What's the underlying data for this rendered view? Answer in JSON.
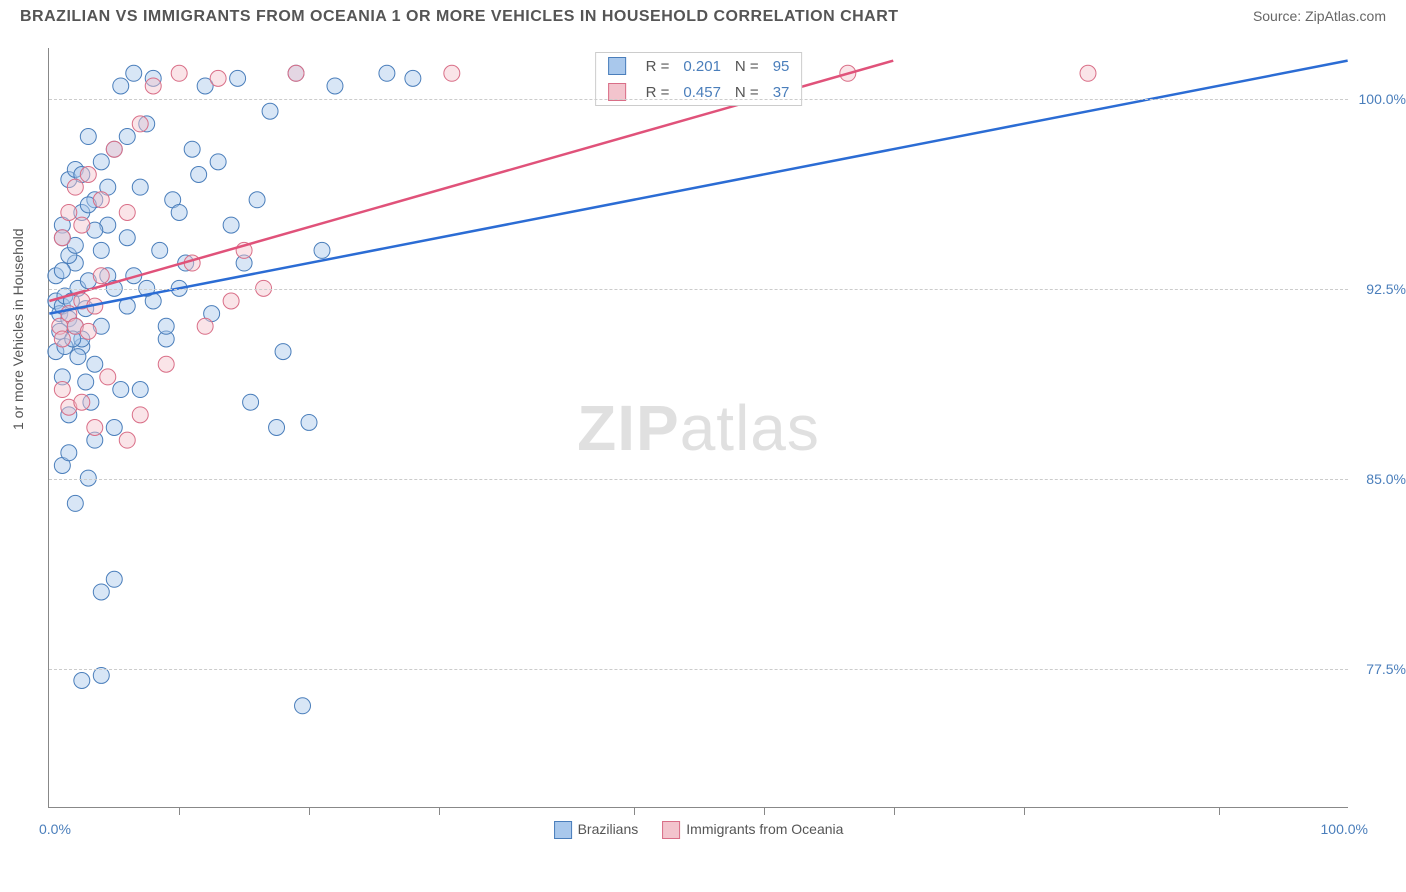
{
  "title": "BRAZILIAN VS IMMIGRANTS FROM OCEANIA 1 OR MORE VEHICLES IN HOUSEHOLD CORRELATION CHART",
  "source": "Source: ZipAtlas.com",
  "watermark_a": "ZIP",
  "watermark_b": "atlas",
  "chart": {
    "type": "scatter",
    "ylabel": "1 or more Vehicles in Household",
    "xlim": [
      0,
      100
    ],
    "ylim": [
      72,
      102
    ],
    "xticks_pos": [
      10,
      20,
      30,
      45,
      55,
      65,
      75,
      90
    ],
    "xaxis_min_label": "0.0%",
    "xaxis_max_label": "100.0%",
    "yticks": [
      {
        "v": 100.0,
        "label": "100.0%"
      },
      {
        "v": 92.5,
        "label": "92.5%"
      },
      {
        "v": 85.0,
        "label": "85.0%"
      },
      {
        "v": 77.5,
        "label": "77.5%"
      }
    ],
    "grid_color": "#cccccc",
    "background_color": "#ffffff",
    "marker_radius": 8,
    "marker_opacity": 0.45,
    "line_width": 2.5,
    "series": [
      {
        "name": "Brazilians",
        "fill": "#a9c8ec",
        "stroke": "#4a7ebb",
        "line_color": "#2b6cd4",
        "R": "0.201",
        "N": "95",
        "trend": {
          "x1": 0,
          "y1": 91.5,
          "x2": 100,
          "y2": 101.5
        },
        "points": [
          [
            0.5,
            92.0
          ],
          [
            0.8,
            91.5
          ],
          [
            1.0,
            91.8
          ],
          [
            1.2,
            92.2
          ],
          [
            1.5,
            91.3
          ],
          [
            1.7,
            92.0
          ],
          [
            2.0,
            91.0
          ],
          [
            2.2,
            92.5
          ],
          [
            2.5,
            90.2
          ],
          [
            2.8,
            91.7
          ],
          [
            1.0,
            95.0
          ],
          [
            1.5,
            96.8
          ],
          [
            2.0,
            97.2
          ],
          [
            2.5,
            97.0
          ],
          [
            3.0,
            98.5
          ],
          [
            3.5,
            96.0
          ],
          [
            4.0,
            97.5
          ],
          [
            4.5,
            95.0
          ],
          [
            5.0,
            98.0
          ],
          [
            5.5,
            100.5
          ],
          [
            6.0,
            98.5
          ],
          [
            6.5,
            101.0
          ],
          [
            7.0,
            96.5
          ],
          [
            7.5,
            99.0
          ],
          [
            8.0,
            100.8
          ],
          [
            1.0,
            89.0
          ],
          [
            1.5,
            87.5
          ],
          [
            2.0,
            93.5
          ],
          [
            2.5,
            90.5
          ],
          [
            3.0,
            92.8
          ],
          [
            3.5,
            89.5
          ],
          [
            4.0,
            91.0
          ],
          [
            4.5,
            93.0
          ],
          [
            5.0,
            92.5
          ],
          [
            5.5,
            88.5
          ],
          [
            6.0,
            91.8
          ],
          [
            1.0,
            85.5
          ],
          [
            1.5,
            86.0
          ],
          [
            2.0,
            84.0
          ],
          [
            3.0,
            85.0
          ],
          [
            3.5,
            86.5
          ],
          [
            4.0,
            80.5
          ],
          [
            5.0,
            81.0
          ],
          [
            2.5,
            77.0
          ],
          [
            4.0,
            77.2
          ],
          [
            7.0,
            88.5
          ],
          [
            8.0,
            92.0
          ],
          [
            9.0,
            90.5
          ],
          [
            9.5,
            96.0
          ],
          [
            10.0,
            95.5
          ],
          [
            10.5,
            93.5
          ],
          [
            11.0,
            98.0
          ],
          [
            11.5,
            97.0
          ],
          [
            12.0,
            100.5
          ],
          [
            12.5,
            91.5
          ],
          [
            13.0,
            97.5
          ],
          [
            14.0,
            95.0
          ],
          [
            14.5,
            100.8
          ],
          [
            15.0,
            93.5
          ],
          [
            15.5,
            88.0
          ],
          [
            16.0,
            96.0
          ],
          [
            17.0,
            99.5
          ],
          [
            17.5,
            87.0
          ],
          [
            18.0,
            90.0
          ],
          [
            19.0,
            101.0
          ],
          [
            19.5,
            76.0
          ],
          [
            20.0,
            87.2
          ],
          [
            21.0,
            94.0
          ],
          [
            22.0,
            100.5
          ],
          [
            26.0,
            101.0
          ],
          [
            28.0,
            100.8
          ],
          [
            1.0,
            94.5
          ],
          [
            1.5,
            93.8
          ],
          [
            2.0,
            94.2
          ],
          [
            2.5,
            95.5
          ],
          [
            3.0,
            95.8
          ],
          [
            3.5,
            94.8
          ],
          [
            4.0,
            94.0
          ],
          [
            4.5,
            96.5
          ],
          [
            0.5,
            90.0
          ],
          [
            0.8,
            90.8
          ],
          [
            1.2,
            90.2
          ],
          [
            1.8,
            90.5
          ],
          [
            2.2,
            89.8
          ],
          [
            2.8,
            88.8
          ],
          [
            3.2,
            88.0
          ],
          [
            5.0,
            87.0
          ],
          [
            6.0,
            94.5
          ],
          [
            6.5,
            93.0
          ],
          [
            7.5,
            92.5
          ],
          [
            8.5,
            94.0
          ],
          [
            9.0,
            91.0
          ],
          [
            10.0,
            92.5
          ],
          [
            0.5,
            93.0
          ],
          [
            1.0,
            93.2
          ]
        ]
      },
      {
        "name": "Immigrants from Oceania",
        "fill": "#f3c4cd",
        "stroke": "#d96e87",
        "line_color": "#e0527a",
        "R": "0.457",
        "N": "37",
        "trend": {
          "x1": 0,
          "y1": 92.0,
          "x2": 65,
          "y2": 101.5
        },
        "points": [
          [
            0.8,
            91.0
          ],
          [
            1.0,
            90.5
          ],
          [
            1.5,
            91.5
          ],
          [
            2.0,
            91.0
          ],
          [
            2.5,
            92.0
          ],
          [
            3.0,
            90.8
          ],
          [
            3.5,
            91.8
          ],
          [
            4.0,
            93.0
          ],
          [
            1.0,
            94.5
          ],
          [
            1.5,
            95.5
          ],
          [
            2.0,
            96.5
          ],
          [
            2.5,
            95.0
          ],
          [
            3.0,
            97.0
          ],
          [
            4.0,
            96.0
          ],
          [
            5.0,
            98.0
          ],
          [
            6.0,
            95.5
          ],
          [
            7.0,
            99.0
          ],
          [
            8.0,
            100.5
          ],
          [
            10.0,
            101.0
          ],
          [
            13.0,
            100.8
          ],
          [
            19.0,
            101.0
          ],
          [
            31.0,
            101.0
          ],
          [
            61.5,
            101.0
          ],
          [
            80.0,
            101.0
          ],
          [
            1.0,
            88.5
          ],
          [
            1.5,
            87.8
          ],
          [
            2.5,
            88.0
          ],
          [
            3.5,
            87.0
          ],
          [
            4.5,
            89.0
          ],
          [
            6.0,
            86.5
          ],
          [
            7.0,
            87.5
          ],
          [
            9.0,
            89.5
          ],
          [
            11.0,
            93.5
          ],
          [
            12.0,
            91.0
          ],
          [
            14.0,
            92.0
          ],
          [
            15.0,
            94.0
          ],
          [
            16.5,
            92.5
          ]
        ]
      }
    ],
    "legend_bottom": [
      {
        "label": "Brazilians",
        "fill": "#a9c8ec",
        "stroke": "#4a7ebb"
      },
      {
        "label": "Immigrants from Oceania",
        "fill": "#f3c4cd",
        "stroke": "#d96e87"
      }
    ]
  }
}
